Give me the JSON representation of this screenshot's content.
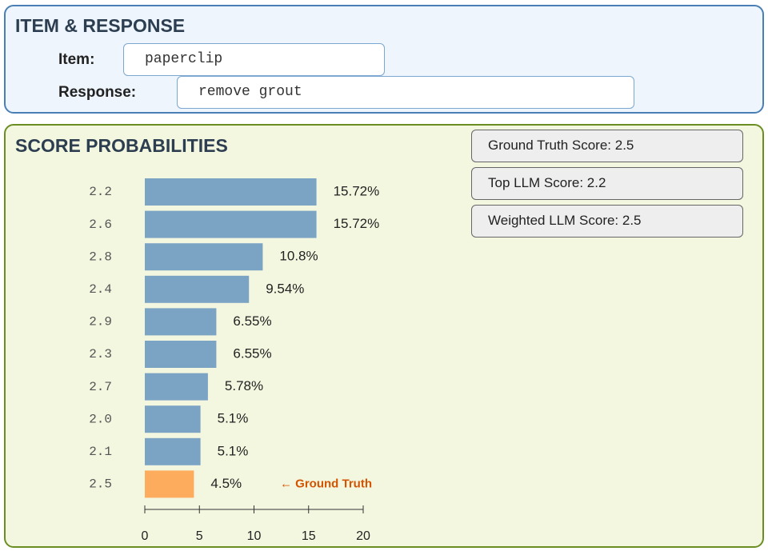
{
  "item_response": {
    "title": "ITEM & RESPONSE",
    "item_label": "Item:",
    "item_value": "paperclip",
    "response_label": "Response:",
    "response_value": "remove grout"
  },
  "score_panel": {
    "title": "SCORE PROBABILITIES",
    "boxes": [
      "Ground Truth Score: 2.5",
      "Top LLM Score: 2.2",
      "Weighted LLM Score: 2.5"
    ]
  },
  "chart_data": {
    "type": "bar",
    "orientation": "horizontal",
    "categories": [
      "2.2",
      "2.6",
      "2.8",
      "2.4",
      "2.9",
      "2.3",
      "2.7",
      "2.0",
      "2.1",
      "2.5"
    ],
    "values": [
      15.72,
      15.72,
      10.8,
      9.54,
      6.55,
      6.55,
      5.78,
      5.1,
      5.1,
      4.5
    ],
    "value_labels": [
      "15.72%",
      "15.72%",
      "10.8%",
      "9.54%",
      "6.55%",
      "6.55%",
      "5.78%",
      "5.1%",
      "5.1%",
      "4.5%"
    ],
    "colors": [
      "#7ba3c4",
      "#7ba3c4",
      "#7ba3c4",
      "#7ba3c4",
      "#7ba3c4",
      "#7ba3c4",
      "#7ba3c4",
      "#7ba3c4",
      "#7ba3c4",
      "#fdab5c"
    ],
    "xlim": [
      0,
      20
    ],
    "xticks": [
      0,
      5,
      10,
      15,
      20
    ],
    "annotation": {
      "text": "← Ground Truth",
      "category": "2.5",
      "color": "#d35400"
    }
  }
}
